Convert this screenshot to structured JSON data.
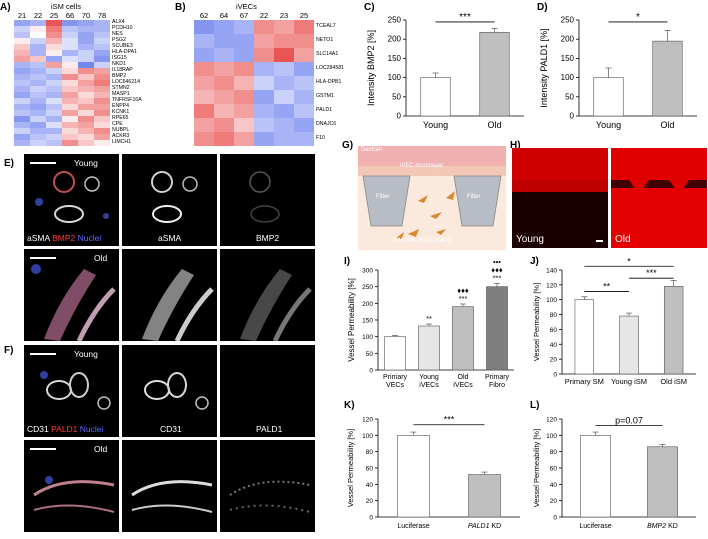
{
  "panels": {
    "A": {
      "label": "A)",
      "title": "iSM cells",
      "columns": [
        "21",
        "22",
        "25",
        "66",
        "70",
        "78"
      ],
      "genes": [
        "ALX4",
        "PCDH10",
        "NES",
        "PSG2",
        "SCUBE3",
        "HLA-DPA1",
        "ISG15",
        "NKD1",
        "IL18RAP",
        "BMP2",
        "LOC646214",
        "STMN2",
        "MASP1",
        "TNFRSF10A",
        "ENPP4",
        "KCNK1",
        "RPE65",
        "CPE",
        "NUBPL",
        "ACKR3",
        "LIMCH1"
      ]
    },
    "B": {
      "label": "B)",
      "title": "iVECs",
      "columns": [
        "62",
        "64",
        "67",
        "22",
        "23",
        "25"
      ],
      "genes": [
        "TCEAL7",
        "NETO1",
        "SLC14A1",
        "LOC284581",
        "HLA-DPB1",
        "GSTM1",
        "PALD1",
        "DNAJC6",
        "F10"
      ]
    },
    "C": {
      "label": "C)"
    },
    "D": {
      "label": "D)"
    },
    "E": {
      "label": "E)",
      "row_young": "Young",
      "row_old": "Old",
      "merge_parts": [
        "aSMA",
        "BMP2",
        "Nuclei"
      ],
      "single_1": "aSMA",
      "single_2": "BMP2"
    },
    "F": {
      "label": "F)",
      "row_young": "Young",
      "row_old": "Old",
      "merge_parts": [
        "CD31",
        "PALD1",
        "Nuclei"
      ],
      "single_1": "CD31",
      "single_2": "PALD1"
    },
    "G": {
      "label": "G)",
      "dextran": "Dextran",
      "monolayer": "iVEC monolayer",
      "filter1": "Filter",
      "filter2": "Filter",
      "matrix": "iSM cells in 3D matrix"
    },
    "H": {
      "label": "H)",
      "young": "Young",
      "old": "Old"
    },
    "I": {
      "label": "I)"
    },
    "J": {
      "label": "J)"
    },
    "K": {
      "label": "K)"
    },
    "L": {
      "label": "L)"
    }
  },
  "chart_data": [
    {
      "id": "C",
      "type": "bar",
      "categories": [
        "Young",
        "Old"
      ],
      "values": [
        100,
        218
      ],
      "errors": [
        12,
        10
      ],
      "ylabel": "Intensity BMP2 [%]",
      "ylim": [
        0,
        250
      ],
      "yticks": [
        0,
        50,
        100,
        150,
        200,
        250
      ],
      "colors": [
        "#ffffff",
        "#bfbfbf"
      ],
      "significance": [
        {
          "from": 0,
          "to": 1,
          "label": "***"
        }
      ]
    },
    {
      "id": "D",
      "type": "bar",
      "categories": [
        "Young",
        "Old"
      ],
      "values": [
        100,
        195
      ],
      "errors": [
        25,
        28
      ],
      "ylabel": "Intensity PALD1 [%]",
      "ylim": [
        0,
        250
      ],
      "yticks": [
        0,
        50,
        100,
        150,
        200,
        250
      ],
      "colors": [
        "#ffffff",
        "#bfbfbf"
      ],
      "significance": [
        {
          "from": 0,
          "to": 1,
          "label": "*"
        }
      ]
    },
    {
      "id": "I",
      "type": "bar",
      "categories": [
        [
          "Primary",
          "VECs"
        ],
        [
          "Young",
          "iVECs"
        ],
        [
          "Old",
          "iVECs"
        ],
        [
          "Primary",
          "Fibro"
        ]
      ],
      "values": [
        100,
        132,
        190,
        250
      ],
      "errors": [
        4,
        6,
        8,
        10
      ],
      "ylabel": "Vessel Permeability [%]",
      "ylim": [
        0,
        300
      ],
      "yticks": [
        0,
        50,
        100,
        150,
        200,
        250,
        300
      ],
      "colors": [
        "#ffffff",
        "#e6e6e6",
        "#bfbfbf",
        "#7f7f7f"
      ],
      "bar_marks": [
        [],
        [
          "**"
        ],
        [
          "♦♦♦",
          "***"
        ],
        [
          "•••",
          "♦♦♦",
          "***"
        ]
      ]
    },
    {
      "id": "J",
      "type": "bar",
      "categories": [
        "Primary SM",
        "Young iSM",
        "Old iSM"
      ],
      "values": [
        100,
        78,
        118
      ],
      "errors": [
        4,
        4,
        8
      ],
      "ylabel": "Vessel Permeability [%]",
      "ylim": [
        0,
        140
      ],
      "yticks": [
        0,
        20,
        40,
        60,
        80,
        100,
        120,
        140
      ],
      "colors": [
        "#ffffff",
        "#e6e6e6",
        "#bfbfbf"
      ],
      "significance": [
        {
          "from": 0,
          "to": 1,
          "label": "**"
        },
        {
          "from": 1,
          "to": 2,
          "label": "***"
        },
        {
          "from": 0,
          "to": 2,
          "label": "*"
        }
      ]
    },
    {
      "id": "K",
      "type": "bar",
      "categories": [
        "Luciferase",
        "PALD1 KD"
      ],
      "italic_prefix": [
        "",
        "PALD1"
      ],
      "values": [
        100,
        52
      ],
      "errors": [
        4,
        3
      ],
      "ylabel": "Vessel Permeability [%]",
      "ylim": [
        0,
        120
      ],
      "yticks": [
        0,
        20,
        40,
        60,
        80,
        100,
        120
      ],
      "colors": [
        "#ffffff",
        "#bfbfbf"
      ],
      "significance": [
        {
          "from": 0,
          "to": 1,
          "label": "***"
        }
      ]
    },
    {
      "id": "L",
      "type": "bar",
      "categories": [
        "Luciferase",
        "BMP2 KD"
      ],
      "italic_prefix": [
        "",
        "BMP2"
      ],
      "values": [
        100,
        86
      ],
      "errors": [
        4,
        3
      ],
      "ylabel": "Vessel Permeability [%]",
      "ylim": [
        0,
        120
      ],
      "yticks": [
        0,
        20,
        40,
        60,
        80,
        100,
        120
      ],
      "colors": [
        "#ffffff",
        "#bfbfbf"
      ],
      "significance": [
        {
          "from": 0,
          "to": 1,
          "label": "p=0.07"
        }
      ]
    }
  ]
}
